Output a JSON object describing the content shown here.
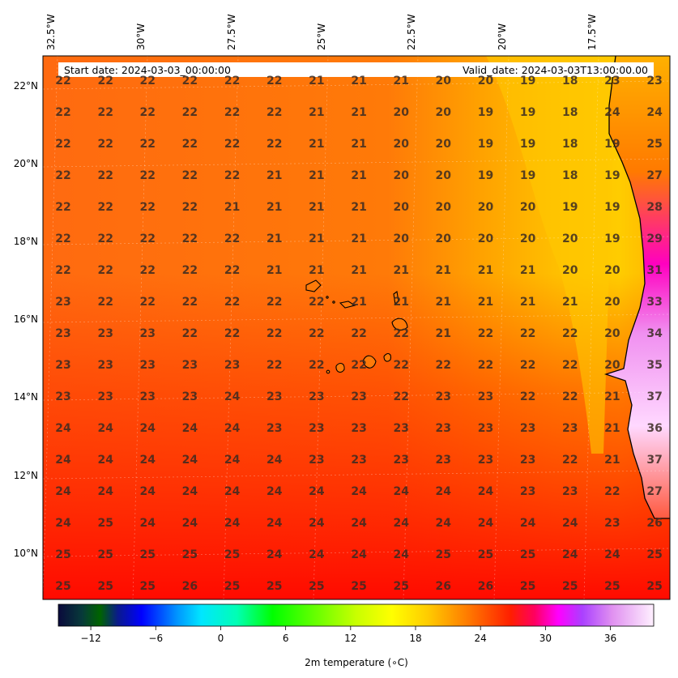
{
  "header": {
    "start_date": "Start date: 2024-03-03_00:00:00",
    "valid_date": "Valid_date: 2024-03-03T13:00:00.00"
  },
  "axes": {
    "lon_labels": [
      "32.5°W",
      "30°W",
      "27.5°W",
      "25°W",
      "22.5°W",
      "20°W",
      "17.5°W"
    ],
    "lat_labels": [
      "22°N",
      "20°N",
      "18°N",
      "16°N",
      "14°N",
      "12°N",
      "10°N"
    ]
  },
  "colorbar": {
    "label": "2m temperature ($^\\circ$C)",
    "label_display": "2m temperature (∘C)",
    "ticks": [
      -12,
      -6,
      0,
      6,
      12,
      18,
      24,
      30,
      36
    ],
    "range": [
      -15,
      40
    ]
  },
  "grid_values": [
    [
      22,
      22,
      22,
      22,
      22,
      22,
      21,
      21,
      21,
      20,
      20,
      19,
      18,
      23,
      23
    ],
    [
      22,
      22,
      22,
      22,
      22,
      22,
      21,
      21,
      20,
      20,
      19,
      19,
      18,
      24,
      24
    ],
    [
      22,
      22,
      22,
      22,
      22,
      22,
      21,
      21,
      20,
      20,
      19,
      19,
      18,
      19,
      25
    ],
    [
      22,
      22,
      22,
      22,
      22,
      21,
      21,
      21,
      20,
      20,
      19,
      19,
      18,
      19,
      27
    ],
    [
      22,
      22,
      22,
      22,
      21,
      21,
      21,
      21,
      20,
      20,
      20,
      20,
      19,
      19,
      28
    ],
    [
      22,
      22,
      22,
      22,
      22,
      21,
      21,
      21,
      20,
      20,
      20,
      20,
      20,
      19,
      29
    ],
    [
      22,
      22,
      22,
      22,
      22,
      21,
      21,
      21,
      21,
      21,
      21,
      21,
      20,
      20,
      31
    ],
    [
      23,
      22,
      22,
      22,
      22,
      22,
      22,
      21,
      21,
      21,
      21,
      21,
      21,
      20,
      33
    ],
    [
      23,
      23,
      23,
      22,
      22,
      22,
      22,
      22,
      22,
      21,
      22,
      22,
      22,
      20,
      34
    ],
    [
      23,
      23,
      23,
      23,
      23,
      22,
      22,
      22,
      22,
      22,
      22,
      22,
      22,
      20,
      35
    ],
    [
      23,
      23,
      23,
      23,
      24,
      23,
      23,
      23,
      22,
      23,
      23,
      22,
      22,
      21,
      37
    ],
    [
      24,
      24,
      24,
      24,
      24,
      23,
      23,
      23,
      23,
      23,
      23,
      23,
      23,
      21,
      36
    ],
    [
      24,
      24,
      24,
      24,
      24,
      24,
      23,
      23,
      23,
      23,
      23,
      23,
      22,
      21,
      37
    ],
    [
      24,
      24,
      24,
      24,
      24,
      24,
      24,
      24,
      24,
      24,
      24,
      23,
      23,
      22,
      27
    ],
    [
      24,
      25,
      24,
      24,
      24,
      24,
      24,
      24,
      24,
      24,
      24,
      24,
      24,
      23,
      26
    ],
    [
      25,
      25,
      25,
      25,
      25,
      24,
      24,
      24,
      24,
      25,
      25,
      25,
      24,
      24,
      25
    ],
    [
      25,
      25,
      25,
      26,
      25,
      25,
      25,
      25,
      25,
      26,
      26,
      25,
      25,
      25,
      25
    ]
  ]
}
